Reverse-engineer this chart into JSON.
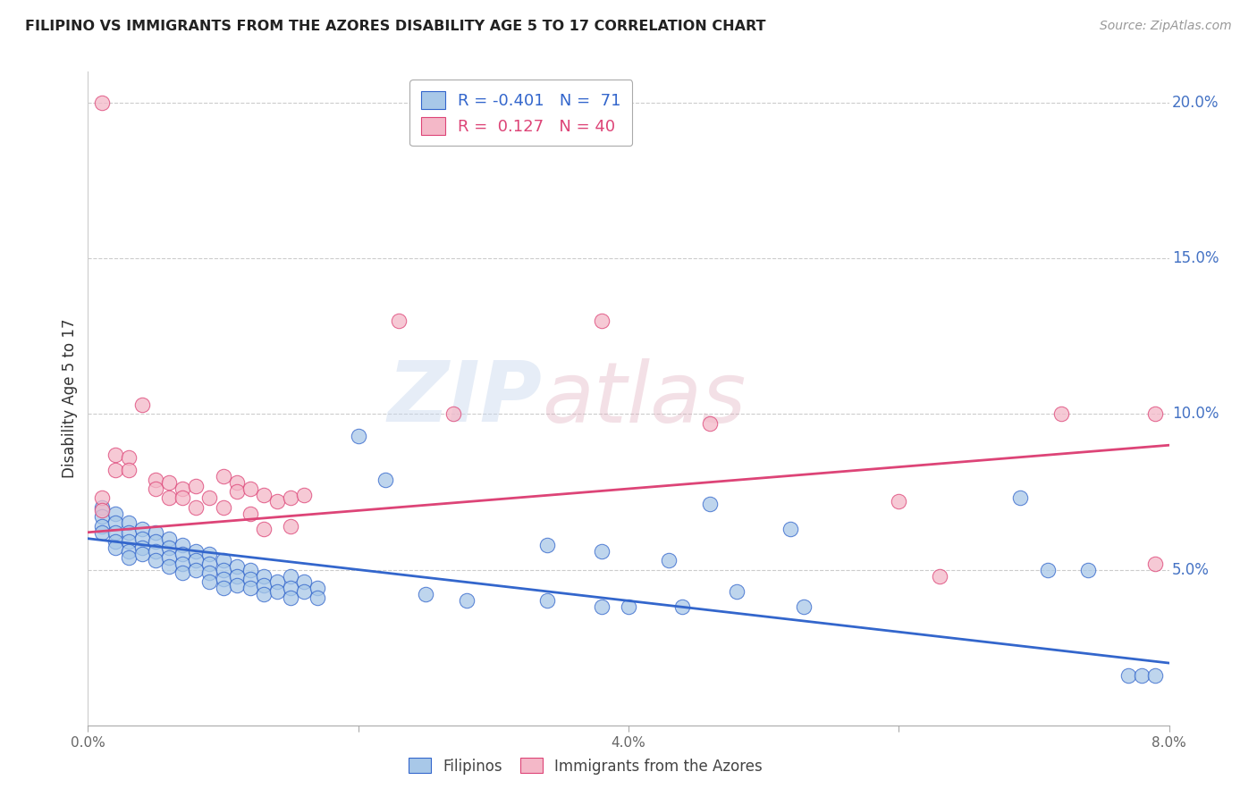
{
  "title": "FILIPINO VS IMMIGRANTS FROM THE AZORES DISABILITY AGE 5 TO 17 CORRELATION CHART",
  "source": "Source: ZipAtlas.com",
  "ylabel": "Disability Age 5 to 17",
  "watermark_zip": "ZIP",
  "watermark_atlas": "atlas",
  "xlim": [
    0.0,
    0.08
  ],
  "ylim": [
    0.0,
    0.21
  ],
  "xticks": [
    0.0,
    0.02,
    0.04,
    0.06,
    0.08
  ],
  "xticklabels": [
    "0.0%",
    "",
    "4.0%",
    "",
    "8.0%"
  ],
  "yticks_right": [
    0.05,
    0.1,
    0.15,
    0.2
  ],
  "yticklabels_right": [
    "5.0%",
    "10.0%",
    "15.0%",
    "20.0%"
  ],
  "legend_r_blue": "-0.401",
  "legend_n_blue": "71",
  "legend_r_pink": " 0.127",
  "legend_n_pink": "40",
  "blue_color": "#a8c8e8",
  "pink_color": "#f4b8c8",
  "line_blue_color": "#3366cc",
  "line_pink_color": "#dd4477",
  "right_axis_color": "#4472c4",
  "blue_scatter": [
    [
      0.001,
      0.07
    ],
    [
      0.001,
      0.067
    ],
    [
      0.001,
      0.064
    ],
    [
      0.001,
      0.062
    ],
    [
      0.002,
      0.068
    ],
    [
      0.002,
      0.065
    ],
    [
      0.002,
      0.062
    ],
    [
      0.002,
      0.059
    ],
    [
      0.002,
      0.057
    ],
    [
      0.003,
      0.065
    ],
    [
      0.003,
      0.062
    ],
    [
      0.003,
      0.059
    ],
    [
      0.003,
      0.056
    ],
    [
      0.003,
      0.054
    ],
    [
      0.004,
      0.063
    ],
    [
      0.004,
      0.06
    ],
    [
      0.004,
      0.057
    ],
    [
      0.004,
      0.055
    ],
    [
      0.005,
      0.062
    ],
    [
      0.005,
      0.059
    ],
    [
      0.005,
      0.056
    ],
    [
      0.005,
      0.053
    ],
    [
      0.006,
      0.06
    ],
    [
      0.006,
      0.057
    ],
    [
      0.006,
      0.054
    ],
    [
      0.006,
      0.051
    ],
    [
      0.007,
      0.058
    ],
    [
      0.007,
      0.055
    ],
    [
      0.007,
      0.052
    ],
    [
      0.007,
      0.049
    ],
    [
      0.008,
      0.056
    ],
    [
      0.008,
      0.053
    ],
    [
      0.008,
      0.05
    ],
    [
      0.009,
      0.055
    ],
    [
      0.009,
      0.052
    ],
    [
      0.009,
      0.049
    ],
    [
      0.009,
      0.046
    ],
    [
      0.01,
      0.053
    ],
    [
      0.01,
      0.05
    ],
    [
      0.01,
      0.047
    ],
    [
      0.01,
      0.044
    ],
    [
      0.011,
      0.051
    ],
    [
      0.011,
      0.048
    ],
    [
      0.011,
      0.045
    ],
    [
      0.012,
      0.05
    ],
    [
      0.012,
      0.047
    ],
    [
      0.012,
      0.044
    ],
    [
      0.013,
      0.048
    ],
    [
      0.013,
      0.045
    ],
    [
      0.013,
      0.042
    ],
    [
      0.014,
      0.046
    ],
    [
      0.014,
      0.043
    ],
    [
      0.015,
      0.048
    ],
    [
      0.015,
      0.044
    ],
    [
      0.015,
      0.041
    ],
    [
      0.016,
      0.046
    ],
    [
      0.016,
      0.043
    ],
    [
      0.017,
      0.044
    ],
    [
      0.017,
      0.041
    ],
    [
      0.02,
      0.093
    ],
    [
      0.022,
      0.079
    ],
    [
      0.025,
      0.042
    ],
    [
      0.028,
      0.04
    ],
    [
      0.034,
      0.058
    ],
    [
      0.034,
      0.04
    ],
    [
      0.038,
      0.056
    ],
    [
      0.038,
      0.038
    ],
    [
      0.04,
      0.038
    ],
    [
      0.043,
      0.053
    ],
    [
      0.044,
      0.038
    ],
    [
      0.046,
      0.071
    ],
    [
      0.048,
      0.043
    ],
    [
      0.052,
      0.063
    ],
    [
      0.053,
      0.038
    ],
    [
      0.069,
      0.073
    ],
    [
      0.071,
      0.05
    ],
    [
      0.074,
      0.05
    ],
    [
      0.077,
      0.016
    ],
    [
      0.078,
      0.016
    ],
    [
      0.079,
      0.016
    ]
  ],
  "pink_scatter": [
    [
      0.001,
      0.2
    ],
    [
      0.001,
      0.073
    ],
    [
      0.001,
      0.069
    ],
    [
      0.002,
      0.087
    ],
    [
      0.002,
      0.082
    ],
    [
      0.003,
      0.086
    ],
    [
      0.003,
      0.082
    ],
    [
      0.004,
      0.103
    ],
    [
      0.005,
      0.079
    ],
    [
      0.005,
      0.076
    ],
    [
      0.006,
      0.078
    ],
    [
      0.006,
      0.073
    ],
    [
      0.007,
      0.076
    ],
    [
      0.007,
      0.073
    ],
    [
      0.008,
      0.077
    ],
    [
      0.008,
      0.07
    ],
    [
      0.009,
      0.073
    ],
    [
      0.01,
      0.08
    ],
    [
      0.01,
      0.07
    ],
    [
      0.011,
      0.078
    ],
    [
      0.011,
      0.075
    ],
    [
      0.012,
      0.076
    ],
    [
      0.012,
      0.068
    ],
    [
      0.013,
      0.074
    ],
    [
      0.013,
      0.063
    ],
    [
      0.014,
      0.072
    ],
    [
      0.015,
      0.073
    ],
    [
      0.015,
      0.064
    ],
    [
      0.016,
      0.074
    ],
    [
      0.023,
      0.13
    ],
    [
      0.027,
      0.1
    ],
    [
      0.038,
      0.13
    ],
    [
      0.046,
      0.097
    ],
    [
      0.06,
      0.072
    ],
    [
      0.063,
      0.048
    ],
    [
      0.072,
      0.1
    ],
    [
      0.079,
      0.052
    ],
    [
      0.079,
      0.1
    ]
  ],
  "blue_line_x": [
    0.0,
    0.08
  ],
  "blue_line_y": [
    0.06,
    0.02
  ],
  "pink_line_x": [
    0.0,
    0.08
  ],
  "pink_line_y": [
    0.062,
    0.09
  ]
}
